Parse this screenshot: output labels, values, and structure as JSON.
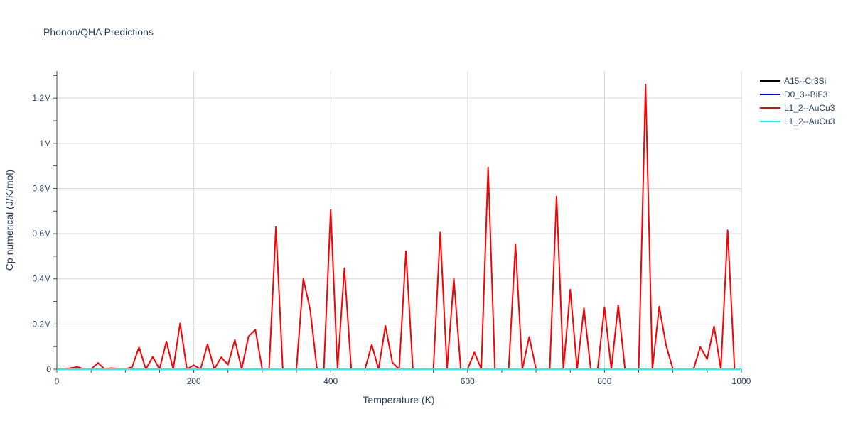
{
  "chart_data": {
    "type": "line",
    "title": "Phonon/QHA Predictions",
    "xlabel": "Temperature (K)",
    "ylabel": "Cp numerical (J/K/mol)",
    "xlim": [
      0,
      1000
    ],
    "ylim": [
      0,
      1320000
    ],
    "x_ticks": [
      0,
      200,
      400,
      600,
      800,
      1000
    ],
    "x_tick_labels": [
      "0",
      "200",
      "400",
      "600",
      "800",
      "1000"
    ],
    "y_ticks": [
      0,
      200000,
      400000,
      600000,
      800000,
      1000000,
      1200000
    ],
    "y_tick_labels": [
      "0",
      "0.2M",
      "0.4M",
      "0.6M",
      "0.8M",
      "1M",
      "1.2M"
    ],
    "grid": true,
    "legend_position": "top-right",
    "series": [
      {
        "name": "A15--Cr3Si",
        "color": "#000000",
        "x": [
          0,
          1000
        ],
        "y": [
          0,
          0
        ]
      },
      {
        "name": "D0_3--BiF3",
        "color": "#0000ff",
        "x": [
          0,
          1000
        ],
        "y": [
          0,
          0
        ]
      },
      {
        "name": "L1_2--AuCu3",
        "color": "#ff0000",
        "x": [
          0,
          10,
          20,
          30,
          40,
          50,
          60,
          70,
          80,
          90,
          100,
          110,
          120,
          130,
          140,
          150,
          160,
          170,
          180,
          190,
          200,
          210,
          220,
          230,
          240,
          250,
          260,
          270,
          280,
          290,
          300,
          310,
          320,
          330,
          340,
          350,
          360,
          370,
          380,
          390,
          400,
          410,
          420,
          430,
          440,
          450,
          460,
          470,
          480,
          490,
          500,
          510,
          520,
          530,
          540,
          550,
          560,
          570,
          580,
          590,
          600,
          610,
          620,
          630,
          640,
          650,
          660,
          670,
          680,
          690,
          700,
          710,
          720,
          730,
          740,
          750,
          760,
          770,
          780,
          790,
          800,
          810,
          820,
          830,
          840,
          850,
          860,
          870,
          880,
          890,
          900,
          910,
          920,
          930,
          940,
          950,
          960,
          970,
          980,
          990
        ],
        "y": [
          0,
          0,
          5000,
          10000,
          0,
          0,
          28000,
          0,
          5000,
          0,
          0,
          10000,
          97000,
          0,
          55000,
          0,
          123000,
          0,
          203000,
          0,
          18000,
          0,
          110000,
          0,
          53000,
          20000,
          130000,
          0,
          145000,
          175000,
          0,
          0,
          630000,
          0,
          0,
          0,
          400000,
          265000,
          0,
          0,
          705000,
          0,
          447000,
          0,
          0,
          0,
          108000,
          0,
          192000,
          30000,
          0,
          522000,
          0,
          0,
          0,
          0,
          605000,
          0,
          400000,
          0,
          0,
          75000,
          0,
          893000,
          0,
          0,
          0,
          552000,
          0,
          143000,
          0,
          0,
          0,
          765000,
          0,
          352000,
          0,
          270000,
          0,
          0,
          275000,
          0,
          283000,
          0,
          0,
          0,
          1260000,
          0,
          277000,
          105000,
          0,
          0,
          0,
          0,
          98000,
          45000,
          190000,
          0,
          615000,
          0
        ]
      },
      {
        "name": "L1_2--AuCu3",
        "color": "#00ffff",
        "x": [
          0,
          1000
        ],
        "y": [
          0,
          0
        ]
      }
    ]
  }
}
